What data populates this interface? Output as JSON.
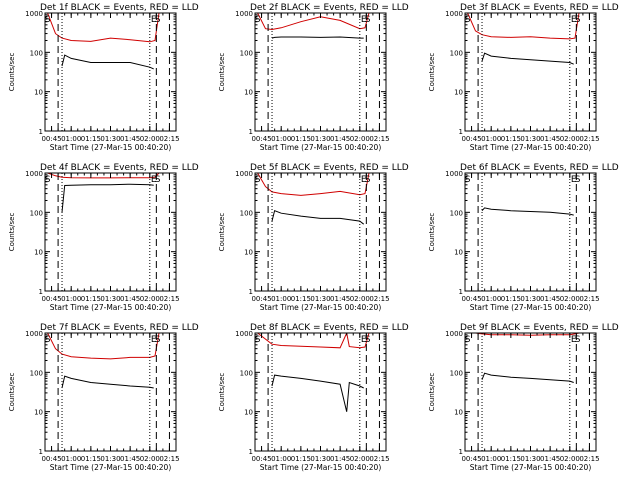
{
  "chart_data": [
    {
      "type": "line",
      "title": "Det 1f BLACK = Events, RED = LLD",
      "ylabel": "Counts/sec",
      "xlabel": "Start Time (27-Mar-15 00:40:20)",
      "xlim": [
        "00:40",
        "02:20"
      ],
      "ylim": [
        1,
        1000
      ],
      "yscale": "log",
      "x_ticks": [
        "00:45",
        "01:00",
        "01:15",
        "01:30",
        "01:45",
        "02:00",
        "02:15"
      ],
      "y_ticks": [
        "1",
        "10",
        "100",
        "1000"
      ],
      "markers": {
        "dashed": [
          "00:50",
          "02:05",
          "02:15"
        ],
        "dotted": [
          "00:53",
          "02:00"
        ],
        "labels": [
          {
            "text": "S",
            "x": "00:42"
          },
          {
            "text": "E",
            "x": "02:03"
          },
          {
            "text": "S",
            "x": "02:06"
          }
        ]
      },
      "series": [
        {
          "name": "RED = LLD",
          "color": "#d00000",
          "x": [
            "00:42",
            "00:48",
            "00:53",
            "01:00",
            "01:15",
            "01:30",
            "01:45",
            "02:00",
            "02:04",
            "02:07"
          ],
          "y": [
            1000,
            300,
            230,
            200,
            190,
            230,
            210,
            185,
            200,
            1000
          ]
        },
        {
          "name": "BLACK = Events",
          "color": "#000000",
          "x": [
            "00:53",
            "00:55",
            "01:00",
            "01:15",
            "01:30",
            "01:45",
            "02:00",
            "02:03"
          ],
          "y": [
            45,
            85,
            70,
            55,
            55,
            55,
            42,
            38
          ]
        }
      ]
    },
    {
      "type": "line",
      "title": "Det 2f BLACK = Events, RED = LLD",
      "ylabel": "Counts/sec",
      "xlabel": "Start Time (27-Mar-15 00:40:20)",
      "xlim": [
        "00:40",
        "02:20"
      ],
      "ylim": [
        1,
        1000
      ],
      "yscale": "log",
      "x_ticks": [
        "00:45",
        "01:00",
        "01:15",
        "01:30",
        "01:45",
        "02:00",
        "02:15"
      ],
      "y_ticks": [
        "1",
        "10",
        "100",
        "1000"
      ],
      "markers": {
        "dashed": [
          "00:50",
          "02:05",
          "02:15"
        ],
        "dotted": [
          "00:53",
          "02:00"
        ],
        "labels": [
          {
            "text": "S",
            "x": "00:42"
          },
          {
            "text": "E",
            "x": "02:03"
          },
          {
            "text": "S",
            "x": "02:06"
          }
        ]
      },
      "series": [
        {
          "name": "RED = LLD",
          "color": "#d00000",
          "x": [
            "00:42",
            "00:48",
            "00:53",
            "01:00",
            "01:15",
            "01:30",
            "01:45",
            "02:00",
            "02:04",
            "02:07"
          ],
          "y": [
            1000,
            400,
            380,
            420,
            600,
            800,
            650,
            400,
            420,
            1000
          ]
        },
        {
          "name": "BLACK = Events",
          "color": "#000000",
          "x": [
            "00:53",
            "00:55",
            "01:00",
            "01:15",
            "01:30",
            "01:45",
            "02:00",
            "02:03"
          ],
          "y": [
            230,
            240,
            245,
            245,
            240,
            245,
            230,
            230
          ]
        }
      ]
    },
    {
      "type": "line",
      "title": "Det 3f BLACK = Events, RED = LLD",
      "ylabel": "Counts/sec",
      "xlabel": "Start Time (27-Mar-15 00:40:20)",
      "xlim": [
        "00:40",
        "02:20"
      ],
      "ylim": [
        1,
        1000
      ],
      "yscale": "log",
      "x_ticks": [
        "00:45",
        "01:00",
        "01:15",
        "01:30",
        "01:45",
        "02:00",
        "02:15"
      ],
      "y_ticks": [
        "1",
        "10",
        "100",
        "1000"
      ],
      "markers": {
        "dashed": [
          "00:50",
          "02:05",
          "02:15"
        ],
        "dotted": [
          "00:53",
          "02:00"
        ],
        "labels": [
          {
            "text": "S",
            "x": "00:42"
          },
          {
            "text": "E",
            "x": "02:03"
          },
          {
            "text": "S",
            "x": "02:06"
          }
        ]
      },
      "series": [
        {
          "name": "RED = LLD",
          "color": "#d00000",
          "x": [
            "00:42",
            "00:48",
            "00:53",
            "01:00",
            "01:15",
            "01:30",
            "01:45",
            "02:00",
            "02:04",
            "02:07"
          ],
          "y": [
            1000,
            350,
            280,
            250,
            240,
            250,
            230,
            220,
            230,
            1000
          ]
        },
        {
          "name": "BLACK = Events",
          "color": "#000000",
          "x": [
            "00:53",
            "00:55",
            "01:00",
            "01:15",
            "01:30",
            "01:45",
            "02:00",
            "02:03"
          ],
          "y": [
            60,
            95,
            80,
            70,
            65,
            60,
            55,
            50
          ]
        }
      ]
    },
    {
      "type": "line",
      "title": "Det 4f BLACK = Events, RED = LLD",
      "ylabel": "Counts/sec",
      "xlabel": "Start Time (27-Mar-15 00:40:20)",
      "xlim": [
        "00:40",
        "02:20"
      ],
      "ylim": [
        1,
        1000
      ],
      "yscale": "log",
      "x_ticks": [
        "00:45",
        "01:00",
        "01:15",
        "01:30",
        "01:45",
        "02:00",
        "02:15"
      ],
      "y_ticks": [
        "1",
        "10",
        "100",
        "1000"
      ],
      "markers": {
        "dashed": [
          "00:50",
          "02:05",
          "02:15"
        ],
        "dotted": [
          "00:53",
          "02:00"
        ],
        "labels": [
          {
            "text": "S",
            "x": "00:42"
          },
          {
            "text": "E",
            "x": "02:03"
          },
          {
            "text": "S",
            "x": "02:06"
          }
        ]
      },
      "series": [
        {
          "name": "RED = LLD",
          "color": "#d00000",
          "x": [
            "00:42",
            "00:48",
            "00:53",
            "01:00",
            "01:15",
            "01:30",
            "01:45",
            "02:00",
            "02:04",
            "02:07"
          ],
          "y": [
            1000,
            850,
            780,
            760,
            750,
            750,
            760,
            760,
            780,
            1000
          ]
        },
        {
          "name": "BLACK = Events",
          "color": "#000000",
          "x": [
            "00:53",
            "00:55",
            "01:00",
            "01:15",
            "01:30",
            "01:45",
            "02:00",
            "02:03"
          ],
          "y": [
            100,
            480,
            490,
            500,
            500,
            520,
            500,
            490
          ]
        }
      ]
    },
    {
      "type": "line",
      "title": "Det 5f BLACK = Events, RED = LLD",
      "ylabel": "Counts/sec",
      "xlabel": "Start Time (27-Mar-15 00:40:20)",
      "xlim": [
        "00:40",
        "02:20"
      ],
      "ylim": [
        1,
        1000
      ],
      "yscale": "log",
      "x_ticks": [
        "00:45",
        "01:00",
        "01:15",
        "01:30",
        "01:45",
        "02:00",
        "02:15"
      ],
      "y_ticks": [
        "1",
        "10",
        "100",
        "1000"
      ],
      "markers": {
        "dashed": [
          "00:50",
          "02:05",
          "02:15"
        ],
        "dotted": [
          "00:53",
          "02:00"
        ],
        "labels": [
          {
            "text": "S",
            "x": "00:42"
          },
          {
            "text": "E",
            "x": "02:03"
          },
          {
            "text": "S",
            "x": "02:06"
          }
        ]
      },
      "series": [
        {
          "name": "RED = LLD",
          "color": "#d00000",
          "x": [
            "00:42",
            "00:48",
            "00:53",
            "01:00",
            "01:15",
            "01:30",
            "01:45",
            "02:00",
            "02:04",
            "02:07"
          ],
          "y": [
            1000,
            450,
            330,
            300,
            270,
            300,
            340,
            280,
            300,
            1000
          ]
        },
        {
          "name": "BLACK = Events",
          "color": "#000000",
          "x": [
            "00:53",
            "00:55",
            "01:00",
            "01:15",
            "01:30",
            "01:45",
            "02:00",
            "02:03"
          ],
          "y": [
            60,
            110,
            95,
            80,
            70,
            70,
            60,
            50
          ]
        }
      ]
    },
    {
      "type": "line",
      "title": "Det 6f BLACK = Events, RED = LLD",
      "ylabel": "Counts/sec",
      "xlabel": "Start Time (27-Mar-15 00:40:20)",
      "xlim": [
        "00:40",
        "02:20"
      ],
      "ylim": [
        1,
        1000
      ],
      "yscale": "log",
      "x_ticks": [
        "00:45",
        "01:00",
        "01:15",
        "01:30",
        "01:45",
        "02:00",
        "02:15"
      ],
      "y_ticks": [
        "1",
        "10",
        "100",
        "1000"
      ],
      "markers": {
        "dashed": [
          "00:50",
          "02:05",
          "02:15"
        ],
        "dotted": [
          "00:53",
          "02:00"
        ],
        "labels": [
          {
            "text": "S",
            "x": "00:42"
          },
          {
            "text": "E",
            "x": "02:03"
          },
          {
            "text": "S",
            "x": "02:06"
          }
        ]
      },
      "series": [
        {
          "name": "BLACK = Events",
          "color": "#000000",
          "x": [
            "00:53",
            "00:55",
            "01:00",
            "01:15",
            "01:30",
            "01:45",
            "02:00",
            "02:03"
          ],
          "y": [
            110,
            130,
            120,
            110,
            105,
            100,
            90,
            85
          ]
        }
      ]
    },
    {
      "type": "line",
      "title": "Det 7f BLACK = Events, RED = LLD",
      "ylabel": "Counts/sec",
      "xlabel": "Start Time (27-Mar-15 00:40:20)",
      "xlim": [
        "00:40",
        "02:20"
      ],
      "ylim": [
        1,
        1000
      ],
      "yscale": "log",
      "x_ticks": [
        "00:45",
        "01:00",
        "01:15",
        "01:30",
        "01:45",
        "02:00",
        "02:15"
      ],
      "y_ticks": [
        "1",
        "10",
        "100",
        "1000"
      ],
      "markers": {
        "dashed": [
          "00:50",
          "02:05",
          "02:15"
        ],
        "dotted": [
          "00:53",
          "02:00"
        ],
        "labels": [
          {
            "text": "S",
            "x": "00:42"
          },
          {
            "text": "E",
            "x": "02:03"
          },
          {
            "text": "S",
            "x": "02:06"
          }
        ]
      },
      "series": [
        {
          "name": "RED = LLD",
          "color": "#d00000",
          "x": [
            "00:42",
            "00:48",
            "00:53",
            "01:00",
            "01:15",
            "01:30",
            "01:45",
            "02:00",
            "02:04",
            "02:07"
          ],
          "y": [
            1000,
            400,
            290,
            250,
            230,
            220,
            240,
            240,
            260,
            1000
          ]
        },
        {
          "name": "BLACK = Events",
          "color": "#000000",
          "x": [
            "00:53",
            "00:55",
            "01:00",
            "01:15",
            "01:30",
            "01:45",
            "02:00",
            "02:03"
          ],
          "y": [
            40,
            80,
            70,
            55,
            50,
            45,
            42,
            40
          ]
        }
      ]
    },
    {
      "type": "line",
      "title": "Det 8f BLACK = Events, RED = LLD",
      "ylabel": "Counts/sec",
      "xlabel": "Start Time (27-Mar-15 00:40:20)",
      "xlim": [
        "00:40",
        "02:20"
      ],
      "ylim": [
        1,
        1000
      ],
      "yscale": "log",
      "x_ticks": [
        "00:45",
        "01:00",
        "01:15",
        "01:30",
        "01:45",
        "02:00",
        "02:15"
      ],
      "y_ticks": [
        "1",
        "10",
        "100",
        "1000"
      ],
      "markers": {
        "dashed": [
          "00:50",
          "02:05",
          "02:15"
        ],
        "dotted": [
          "00:53",
          "02:00"
        ],
        "labels": [
          {
            "text": "S",
            "x": "00:42"
          },
          {
            "text": "E",
            "x": "02:03"
          },
          {
            "text": "S",
            "x": "02:06"
          }
        ]
      },
      "series": [
        {
          "name": "RED = LLD",
          "color": "#d00000",
          "x": [
            "00:42",
            "00:48",
            "00:53",
            "01:00",
            "01:15",
            "01:30",
            "01:45",
            "01:50",
            "01:52",
            "02:00",
            "02:04",
            "02:07"
          ],
          "y": [
            1000,
            700,
            520,
            480,
            460,
            440,
            420,
            1000,
            450,
            420,
            440,
            1000
          ]
        },
        {
          "name": "BLACK = Events",
          "color": "#000000",
          "x": [
            "00:53",
            "00:55",
            "01:00",
            "01:15",
            "01:30",
            "01:45",
            "01:50",
            "01:52",
            "02:00",
            "02:03"
          ],
          "y": [
            45,
            85,
            80,
            70,
            60,
            50,
            10,
            55,
            45,
            40
          ]
        }
      ]
    },
    {
      "type": "line",
      "title": "Det 9f BLACK = Events, RED = LLD",
      "ylabel": "Counts/sec",
      "xlabel": "Start Time (27-Mar-15 00:40:20)",
      "xlim": [
        "00:40",
        "02:20"
      ],
      "ylim": [
        1,
        1000
      ],
      "yscale": "log",
      "x_ticks": [
        "00:45",
        "01:00",
        "01:15",
        "01:30",
        "01:45",
        "02:00",
        "02:15"
      ],
      "y_ticks": [
        "1",
        "10",
        "100",
        "1000"
      ],
      "markers": {
        "dashed": [
          "00:50",
          "02:05",
          "02:15"
        ],
        "dotted": [
          "00:53",
          "02:00"
        ],
        "labels": [
          {
            "text": "S",
            "x": "00:42"
          },
          {
            "text": "E",
            "x": "02:03"
          },
          {
            "text": "S",
            "x": "02:06"
          }
        ]
      },
      "series": [
        {
          "name": "RED = LLD",
          "color": "#d00000",
          "x": [
            "00:42",
            "00:48",
            "00:53",
            "01:00",
            "01:15",
            "01:30",
            "01:45",
            "02:00",
            "02:04",
            "02:07"
          ],
          "y": [
            1000,
            1000,
            950,
            900,
            900,
            880,
            900,
            900,
            950,
            1000
          ]
        },
        {
          "name": "BLACK = Events",
          "color": "#000000",
          "x": [
            "00:53",
            "00:55",
            "01:00",
            "01:15",
            "01:30",
            "01:45",
            "02:00",
            "02:03"
          ],
          "y": [
            65,
            95,
            85,
            75,
            70,
            65,
            60,
            55
          ]
        }
      ]
    }
  ]
}
